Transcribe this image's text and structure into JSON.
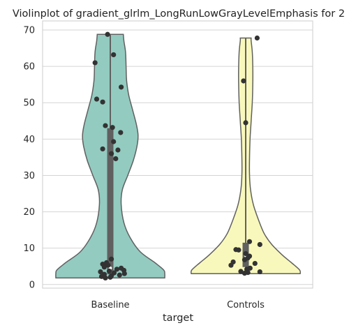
{
  "chart_data": {
    "type": "violin",
    "title": "Violinplot of gradient_glrlm_LongRunLowGrayLevelEmphasis for 2",
    "xlabel": "target",
    "ylabel": "",
    "ylim": [
      -1,
      72.5
    ],
    "yticks": [
      0,
      10,
      20,
      30,
      40,
      50,
      60,
      70
    ],
    "grid": true,
    "categories": [
      "Baseline",
      "Controls"
    ],
    "colors": {
      "Baseline": "#93cbc0",
      "Controls": "#f8f8bc",
      "outline": "#606060",
      "points": "#333333"
    },
    "series": [
      {
        "category": "Baseline",
        "min": 1.8,
        "max": 68.8,
        "q1": 2.8,
        "median": 4.5,
        "q3": 43,
        "points": [
          {
            "y": 68.8,
            "j": -0.05
          },
          {
            "y": 63.2,
            "j": 0.06
          },
          {
            "y": 61,
            "j": -0.28
          },
          {
            "y": 54.3,
            "j": 0.2
          },
          {
            "y": 51,
            "j": -0.25
          },
          {
            "y": 50.2,
            "j": -0.14
          },
          {
            "y": 43.7,
            "j": -0.09
          },
          {
            "y": 43.2,
            "j": 0.04
          },
          {
            "y": 41.8,
            "j": 0.19
          },
          {
            "y": 39.3,
            "j": 0.06
          },
          {
            "y": 37.3,
            "j": -0.14
          },
          {
            "y": 37.0,
            "j": 0.14
          },
          {
            "y": 36.0,
            "j": 0.02
          },
          {
            "y": 34.6,
            "j": 0.1
          },
          {
            "y": 7.0,
            "j": 0.02
          },
          {
            "y": 6.0,
            "j": -0.07
          },
          {
            "y": 5.6,
            "j": -0.14
          },
          {
            "y": 5.3,
            "j": -0.04
          },
          {
            "y": 4.8,
            "j": -0.11
          },
          {
            "y": 4.5,
            "j": 0.2
          },
          {
            "y": 4.2,
            "j": 0.12
          },
          {
            "y": 3.9,
            "j": 0.25
          },
          {
            "y": 3.7,
            "j": -0.02
          },
          {
            "y": 3.5,
            "j": -0.18
          },
          {
            "y": 3.2,
            "j": 0.07
          },
          {
            "y": 3.0,
            "j": 0.26
          },
          {
            "y": 2.8,
            "j": -0.11
          },
          {
            "y": 2.6,
            "j": 0.17
          },
          {
            "y": 2.4,
            "j": 0.02
          },
          {
            "y": 2.2,
            "j": -0.16
          },
          {
            "y": 2.0,
            "j": 0.0
          },
          {
            "y": 1.8,
            "j": -0.09
          }
        ]
      },
      {
        "category": "Controls",
        "min": 3.0,
        "max": 67.8,
        "q1": 4.8,
        "median": 8.0,
        "q3": 11.5,
        "points": [
          {
            "y": 67.8,
            "j": 0.21
          },
          {
            "y": 56.0,
            "j": -0.04
          },
          {
            "y": 44.5,
            "j": 0.0
          },
          {
            "y": 11.8,
            "j": 0.07
          },
          {
            "y": 11.0,
            "j": 0.26
          },
          {
            "y": 9.6,
            "j": -0.18
          },
          {
            "y": 9.5,
            "j": -0.13
          },
          {
            "y": 8.5,
            "j": 0.0
          },
          {
            "y": 7.8,
            "j": 0.07
          },
          {
            "y": 7.3,
            "j": 0.04
          },
          {
            "y": 6.8,
            "j": -0.02
          },
          {
            "y": 6.2,
            "j": -0.23
          },
          {
            "y": 5.8,
            "j": 0.17
          },
          {
            "y": 5.3,
            "j": -0.27
          },
          {
            "y": 4.5,
            "j": 0.08
          },
          {
            "y": 4.2,
            "j": 0.02
          },
          {
            "y": 3.6,
            "j": -0.09
          },
          {
            "y": 3.5,
            "j": 0.26
          },
          {
            "y": 3.3,
            "j": 0.04
          },
          {
            "y": 3.1,
            "j": -0.02
          }
        ]
      }
    ]
  }
}
